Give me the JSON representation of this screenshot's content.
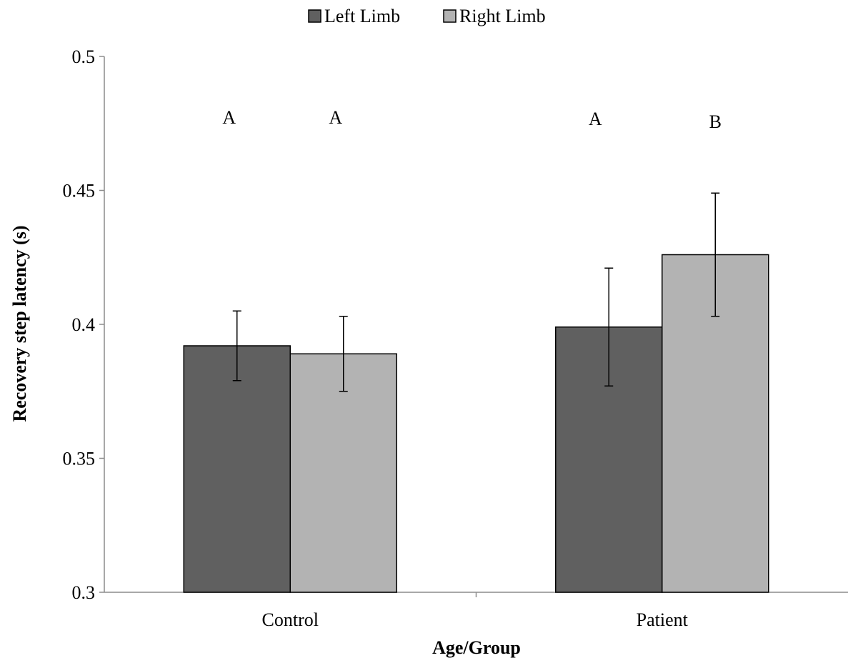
{
  "chart_data": {
    "type": "bar",
    "xlabel": "Age/Group",
    "ylabel": "Recovery step latency (s)",
    "categories": [
      "Control",
      "Patient"
    ],
    "ylim": [
      0.3,
      0.5
    ],
    "yticks": [
      0.3,
      0.35,
      0.4,
      0.45,
      0.5
    ],
    "ytick_labels": [
      "0.3",
      "0.35",
      "0.4",
      "0.45",
      "0.5"
    ],
    "grid": false,
    "legend_position": "top-center",
    "series": [
      {
        "name": "Left Limb",
        "color": "#606060",
        "values": [
          0.392,
          0.399
        ],
        "error": [
          0.013,
          0.022
        ],
        "significance": [
          "A",
          "A"
        ]
      },
      {
        "name": "Right Limb",
        "color": "#b3b3b3",
        "values": [
          0.389,
          0.426
        ],
        "error": [
          0.014,
          0.023
        ],
        "significance": [
          "A",
          "B"
        ]
      }
    ]
  }
}
